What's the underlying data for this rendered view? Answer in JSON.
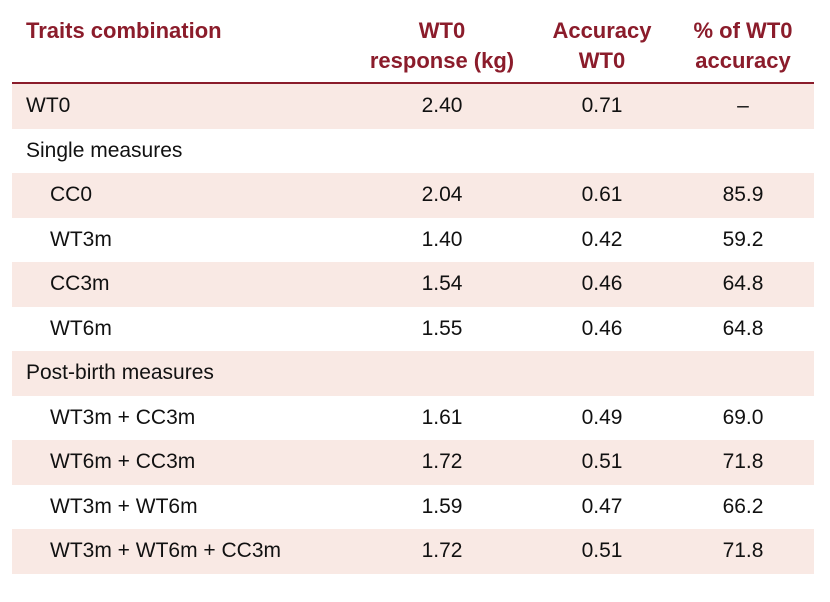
{
  "headers": {
    "traits": "Traits combination",
    "response_line1": "WT0",
    "response_line2": "response (kg)",
    "accuracy_line1": "Accuracy",
    "accuracy_line2": "WT0",
    "pct_line1": "% of WT0",
    "pct_line2": "accuracy"
  },
  "rows": [
    {
      "label": "WT0",
      "response": "2.40",
      "accuracy": "0.71",
      "pct": "–"
    },
    {
      "label": "Single measures"
    },
    {
      "label": "CC0",
      "response": "2.04",
      "accuracy": "0.61",
      "pct": "85.9"
    },
    {
      "label": "WT3m",
      "response": "1.40",
      "accuracy": "0.42",
      "pct": "59.2"
    },
    {
      "label": "CC3m",
      "response": "1.54",
      "accuracy": "0.46",
      "pct": "64.8"
    },
    {
      "label": "WT6m",
      "response": "1.55",
      "accuracy": "0.46",
      "pct": "64.8"
    },
    {
      "label": "Post-birth measures"
    },
    {
      "label": "WT3m + CC3m",
      "response": "1.61",
      "accuracy": "0.49",
      "pct": "69.0"
    },
    {
      "label": "WT6m + CC3m",
      "response": "1.72",
      "accuracy": "0.51",
      "pct": "71.8"
    },
    {
      "label": "WT3m + WT6m",
      "response": "1.59",
      "accuracy": "0.47",
      "pct": "66.2"
    },
    {
      "label": "WT3m + WT6m + CC3m",
      "response": "1.72",
      "accuracy": "0.51",
      "pct": "71.8"
    }
  ],
  "colors": {
    "header_text": "#8b1c2b",
    "row_shade": "#f9e9e4"
  }
}
